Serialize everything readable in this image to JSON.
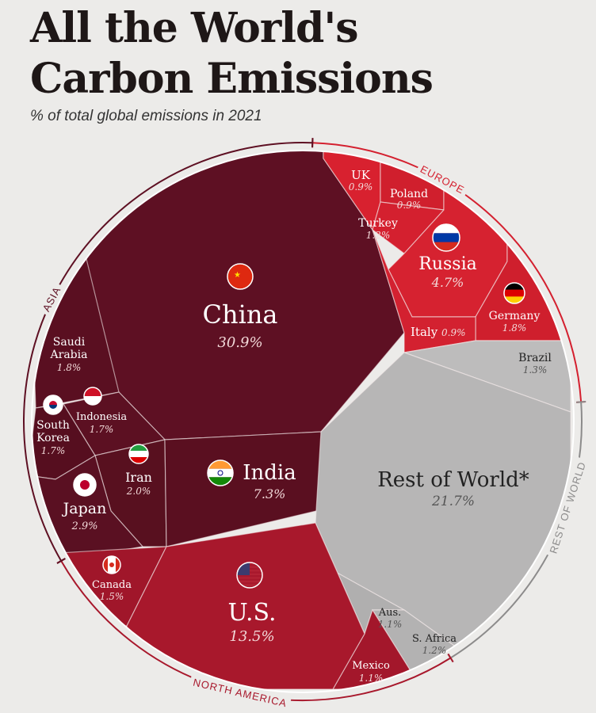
{
  "header": {
    "title_line1": "All the World's",
    "title_line2": "Carbon Emissions",
    "subtitle": "% of total global emissions in 2021"
  },
  "chart_data": {
    "type": "voronoi-treemap",
    "unit": "% of total global emissions in 2021",
    "groups": [
      {
        "name": "ASIA",
        "color": "#5e1023",
        "items": [
          {
            "name": "China",
            "value": 30.9,
            "label": "30.9%"
          },
          {
            "name": "India",
            "value": 7.3,
            "label": "7.3%"
          },
          {
            "name": "Japan",
            "value": 2.9,
            "label": "2.9%"
          },
          {
            "name": "Iran",
            "value": 2.0,
            "label": "2.0%"
          },
          {
            "name": "Saudi Arabia",
            "value": 1.8,
            "label": "1.8%"
          },
          {
            "name": "Indonesia",
            "value": 1.7,
            "label": "1.7%"
          },
          {
            "name": "South Korea",
            "value": 1.7,
            "label": "1.7%"
          }
        ]
      },
      {
        "name": "EUROPE",
        "color": "#d4202f",
        "items": [
          {
            "name": "Russia",
            "value": 4.7,
            "label": "4.7%"
          },
          {
            "name": "Germany",
            "value": 1.8,
            "label": "1.8%"
          },
          {
            "name": "Turkey",
            "value": 1.2,
            "label": "1.2%"
          },
          {
            "name": "UK",
            "value": 0.9,
            "label": "0.9%"
          },
          {
            "name": "Poland",
            "value": 0.9,
            "label": "0.9%"
          },
          {
            "name": "Italy",
            "value": 0.9,
            "label": "0.9%"
          }
        ]
      },
      {
        "name": "NORTH AMERICA",
        "color": "#a8182c",
        "items": [
          {
            "name": "U.S.",
            "value": 13.5,
            "label": "13.5%"
          },
          {
            "name": "Canada",
            "value": 1.5,
            "label": "1.5%"
          },
          {
            "name": "Mexico",
            "value": 1.1,
            "label": "1.1%"
          }
        ]
      },
      {
        "name": "REST OF WORLD",
        "color": "#b7b6b6",
        "items": [
          {
            "name": "Rest of World*",
            "value": 21.7,
            "label": "21.7%"
          },
          {
            "name": "Brazil",
            "value": 1.3,
            "label": "1.3%"
          },
          {
            "name": "Aus.",
            "value": 1.1,
            "label": "1.1%"
          },
          {
            "name": "S. Africa",
            "value": 1.2,
            "label": "1.2%"
          }
        ]
      }
    ]
  }
}
